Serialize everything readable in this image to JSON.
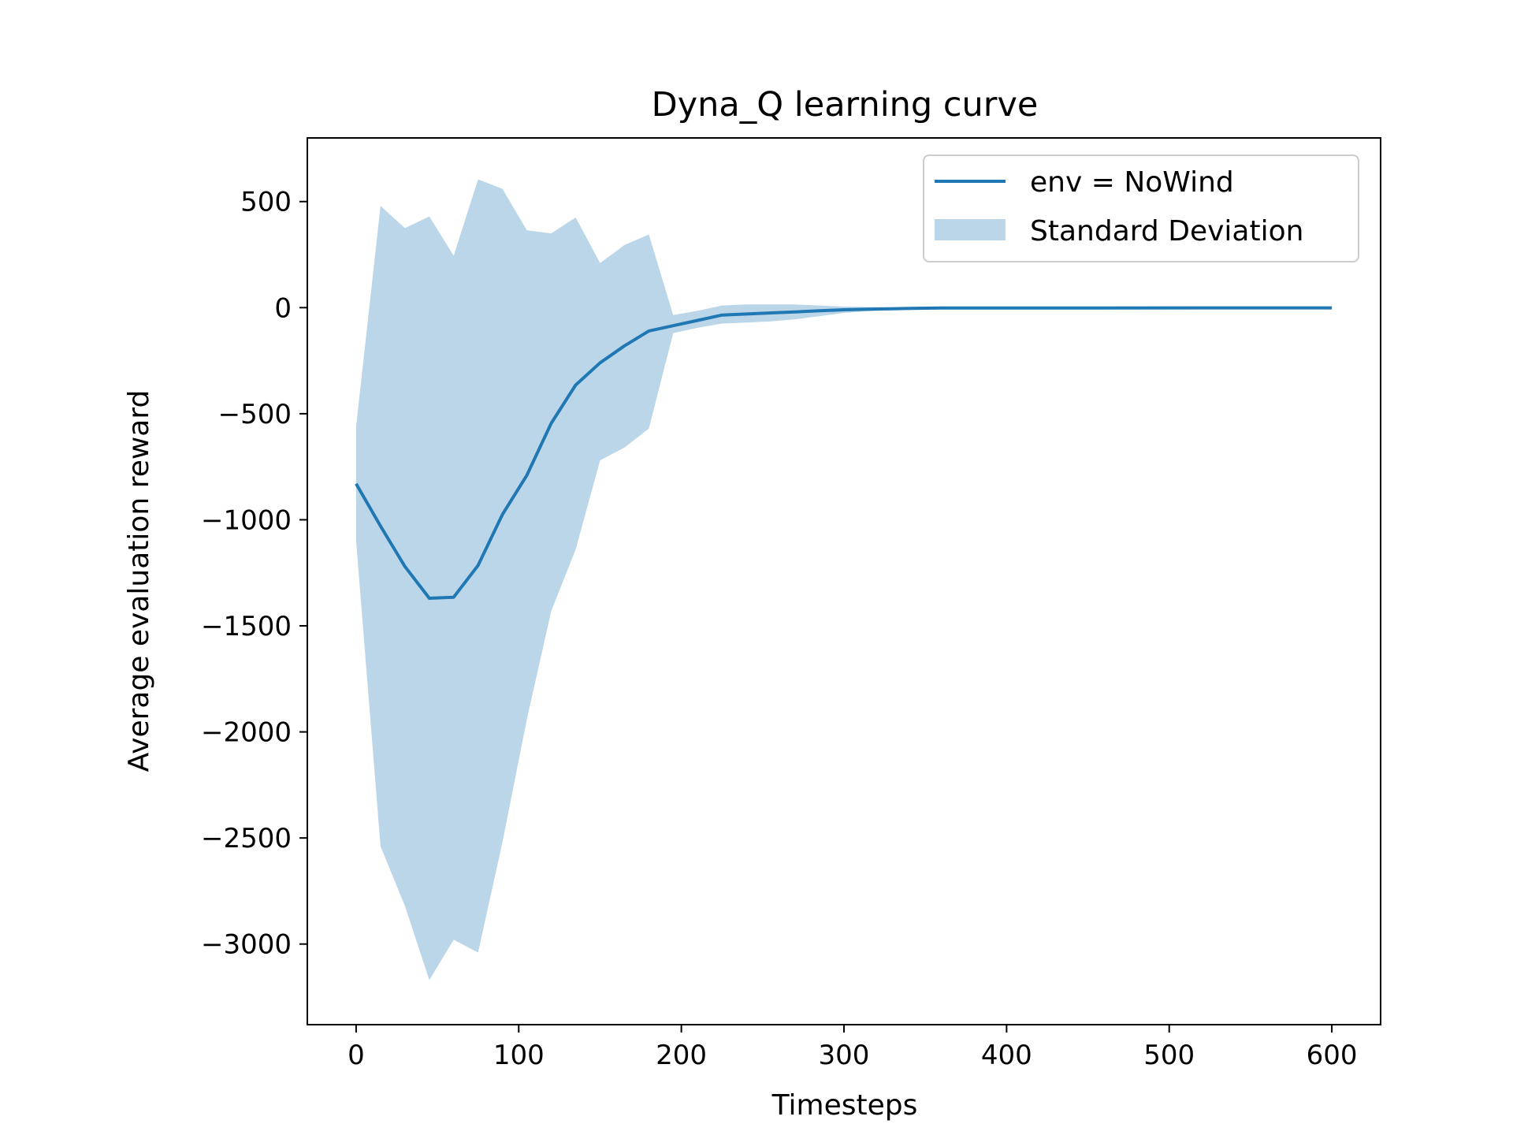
{
  "chart_data": {
    "type": "line",
    "title": "Dyna_Q learning curve",
    "xlabel": "Timesteps",
    "ylabel": "Average evaluation reward",
    "xlim": [
      -30,
      630
    ],
    "ylim": [
      -3380,
      800
    ],
    "xticks": [
      0,
      100,
      200,
      300,
      400,
      500,
      600
    ],
    "yticks": [
      500,
      0,
      -500,
      -1000,
      -1500,
      -2000,
      -2500,
      -3000
    ],
    "xtick_labels": [
      "0",
      "100",
      "200",
      "300",
      "400",
      "500",
      "600"
    ],
    "ytick_labels": [
      "500",
      "0",
      "−500",
      "−1000",
      "−1500",
      "−2000",
      "−2500",
      "−3000"
    ],
    "grid": false,
    "legend_position": "top-right",
    "colors": {
      "line": "#1f77b4",
      "band": "#1f77b4"
    },
    "band_opacity": 0.3,
    "series": [
      {
        "name": "env = NoWind",
        "x": [
          0,
          15,
          30,
          45,
          60,
          75,
          90,
          105,
          120,
          135,
          150,
          165,
          180,
          195,
          210,
          225,
          240,
          255,
          270,
          285,
          300,
          315,
          330,
          345,
          360,
          600
        ],
        "y": [
          -830,
          -1030,
          -1220,
          -1370,
          -1365,
          -1215,
          -975,
          -790,
          -545,
          -365,
          -260,
          -180,
          -110,
          -85,
          -60,
          -35,
          -30,
          -25,
          -20,
          -15,
          -10,
          -7,
          -5,
          -3,
          -2,
          -1
        ]
      }
    ],
    "band": {
      "name": "Standard Deviation",
      "x": [
        0,
        15,
        30,
        45,
        60,
        75,
        90,
        105,
        120,
        135,
        150,
        165,
        180,
        195,
        210,
        225,
        240,
        255,
        270,
        285,
        300,
        315,
        330,
        345,
        360,
        600
      ],
      "upper": [
        -560,
        480,
        375,
        430,
        245,
        605,
        560,
        365,
        350,
        425,
        210,
        295,
        345,
        -35,
        -15,
        10,
        15,
        15,
        15,
        10,
        5,
        3,
        2,
        1,
        1,
        0
      ],
      "lower": [
        -1100,
        -2540,
        -2820,
        -3170,
        -2980,
        -3040,
        -2520,
        -1940,
        -1430,
        -1140,
        -720,
        -660,
        -570,
        -120,
        -95,
        -75,
        -70,
        -65,
        -55,
        -40,
        -25,
        -17,
        -10,
        -6,
        -4,
        -2
      ]
    }
  }
}
